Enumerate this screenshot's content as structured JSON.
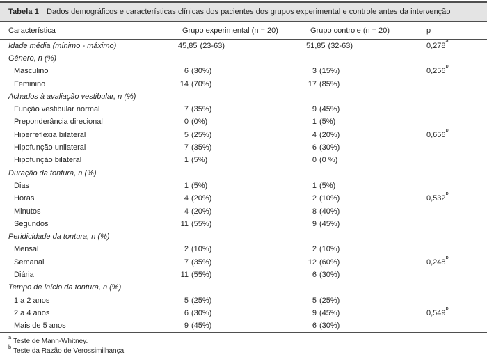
{
  "table": {
    "title_label": "Tabela 1",
    "title_text": "Dados demográficos e características clínicas dos pacientes dos grupos experimental e controle antes da intervenção",
    "columns": [
      "Característica",
      "Grupo experimental (n = 20)",
      "Grupo controle (n = 20)",
      "p"
    ],
    "rows": [
      {
        "label": "Idade média (mínimo - máximo)",
        "style": "section",
        "exp_n": "45,85",
        "exp_pct": "(23-63)",
        "ctrl_n": "51,85",
        "ctrl_pct": "(32-63)",
        "p": "0,278",
        "p_sup": "a"
      },
      {
        "label": "Gênero, n (%)",
        "style": "section",
        "exp_n": "",
        "exp_pct": "",
        "ctrl_n": "",
        "ctrl_pct": "",
        "p": "",
        "p_sup": ""
      },
      {
        "label": "Masculino",
        "style": "item",
        "exp_n": "6",
        "exp_pct": "(30%)",
        "ctrl_n": "3",
        "ctrl_pct": "(15%)",
        "p": "0,256",
        "p_sup": "b"
      },
      {
        "label": "Feminino",
        "style": "item",
        "exp_n": "14",
        "exp_pct": "(70%)",
        "ctrl_n": "17",
        "ctrl_pct": "(85%)",
        "p": "",
        "p_sup": ""
      },
      {
        "label": "Achados à avaliação vestibular, n (%)",
        "style": "section",
        "exp_n": "",
        "exp_pct": "",
        "ctrl_n": "",
        "ctrl_pct": "",
        "p": "",
        "p_sup": ""
      },
      {
        "label": "Função vestibular normal",
        "style": "item",
        "exp_n": "7",
        "exp_pct": "(35%)",
        "ctrl_n": "9",
        "ctrl_pct": "(45%)",
        "p": "",
        "p_sup": ""
      },
      {
        "label": "Preponderância direcional",
        "style": "item",
        "exp_n": "0",
        "exp_pct": "(0%)",
        "ctrl_n": "1",
        "ctrl_pct": "(5%)",
        "p": "",
        "p_sup": ""
      },
      {
        "label": "Hiperreflexia bilateral",
        "style": "item",
        "exp_n": "5",
        "exp_pct": "(25%)",
        "ctrl_n": "4",
        "ctrl_pct": "(20%)",
        "p": "0,656",
        "p_sup": "b"
      },
      {
        "label": "Hipofunção unilateral",
        "style": "item",
        "exp_n": "7",
        "exp_pct": "(35%)",
        "ctrl_n": "6",
        "ctrl_pct": "(30%)",
        "p": "",
        "p_sup": ""
      },
      {
        "label": "Hipofunção bilateral",
        "style": "item",
        "exp_n": "1",
        "exp_pct": "(5%)",
        "ctrl_n": "0",
        "ctrl_pct": "(0 %)",
        "p": "",
        "p_sup": ""
      },
      {
        "label": "Duração da tontura, n (%)",
        "style": "section",
        "exp_n": "",
        "exp_pct": "",
        "ctrl_n": "",
        "ctrl_pct": "",
        "p": "",
        "p_sup": ""
      },
      {
        "label": "Dias",
        "style": "item",
        "exp_n": "1",
        "exp_pct": "(5%)",
        "ctrl_n": "1",
        "ctrl_pct": "(5%)",
        "p": "",
        "p_sup": ""
      },
      {
        "label": "Horas",
        "style": "item",
        "exp_n": "4",
        "exp_pct": "(20%)",
        "ctrl_n": "2",
        "ctrl_pct": "(10%)",
        "p": "0,532",
        "p_sup": "b"
      },
      {
        "label": "Minutos",
        "style": "item",
        "exp_n": "4",
        "exp_pct": "(20%)",
        "ctrl_n": "8",
        "ctrl_pct": "(40%)",
        "p": "",
        "p_sup": ""
      },
      {
        "label": "Segundos",
        "style": "item",
        "exp_n": "11",
        "exp_pct": "(55%)",
        "ctrl_n": "9",
        "ctrl_pct": "(45%)",
        "p": "",
        "p_sup": ""
      },
      {
        "label": "Peridicidade da tontura, n (%)",
        "style": "section",
        "exp_n": "",
        "exp_pct": "",
        "ctrl_n": "",
        "ctrl_pct": "",
        "p": "",
        "p_sup": ""
      },
      {
        "label": "Mensal",
        "style": "item",
        "exp_n": "2",
        "exp_pct": "(10%)",
        "ctrl_n": "2",
        "ctrl_pct": "(10%)",
        "p": "",
        "p_sup": ""
      },
      {
        "label": "Semanal",
        "style": "item",
        "exp_n": "7",
        "exp_pct": "(35%)",
        "ctrl_n": "12",
        "ctrl_pct": "(60%)",
        "p": "0,248",
        "p_sup": "b"
      },
      {
        "label": "Diária",
        "style": "item",
        "exp_n": "11",
        "exp_pct": "(55%)",
        "ctrl_n": "6",
        "ctrl_pct": "(30%)",
        "p": "",
        "p_sup": ""
      },
      {
        "label": "Tempo de início da tontura, n (%)",
        "style": "section",
        "exp_n": "",
        "exp_pct": "",
        "ctrl_n": "",
        "ctrl_pct": "",
        "p": "",
        "p_sup": ""
      },
      {
        "label": "1 a 2 anos",
        "style": "item",
        "exp_n": "5",
        "exp_pct": "(25%)",
        "ctrl_n": "5",
        "ctrl_pct": "(25%)",
        "p": "",
        "p_sup": ""
      },
      {
        "label": "2 a 4 anos",
        "style": "item",
        "exp_n": "6",
        "exp_pct": "(30%)",
        "ctrl_n": "9",
        "ctrl_pct": "(45%)",
        "p": "0,549",
        "p_sup": "b"
      },
      {
        "label": "Mais de 5 anos",
        "style": "item",
        "exp_n": "9",
        "exp_pct": "(45%)",
        "ctrl_n": "6",
        "ctrl_pct": "(30%)",
        "p": "",
        "p_sup": ""
      }
    ],
    "footnotes": [
      {
        "sup": "a",
        "text": "Teste de Mann-Whitney."
      },
      {
        "sup": "b",
        "text": "Teste da Razão de Verossimilhança."
      }
    ],
    "colors": {
      "caption_band": "#e4e4e4",
      "rule": "#4f4f4f",
      "text": "#262626",
      "background": "#ffffff"
    }
  }
}
